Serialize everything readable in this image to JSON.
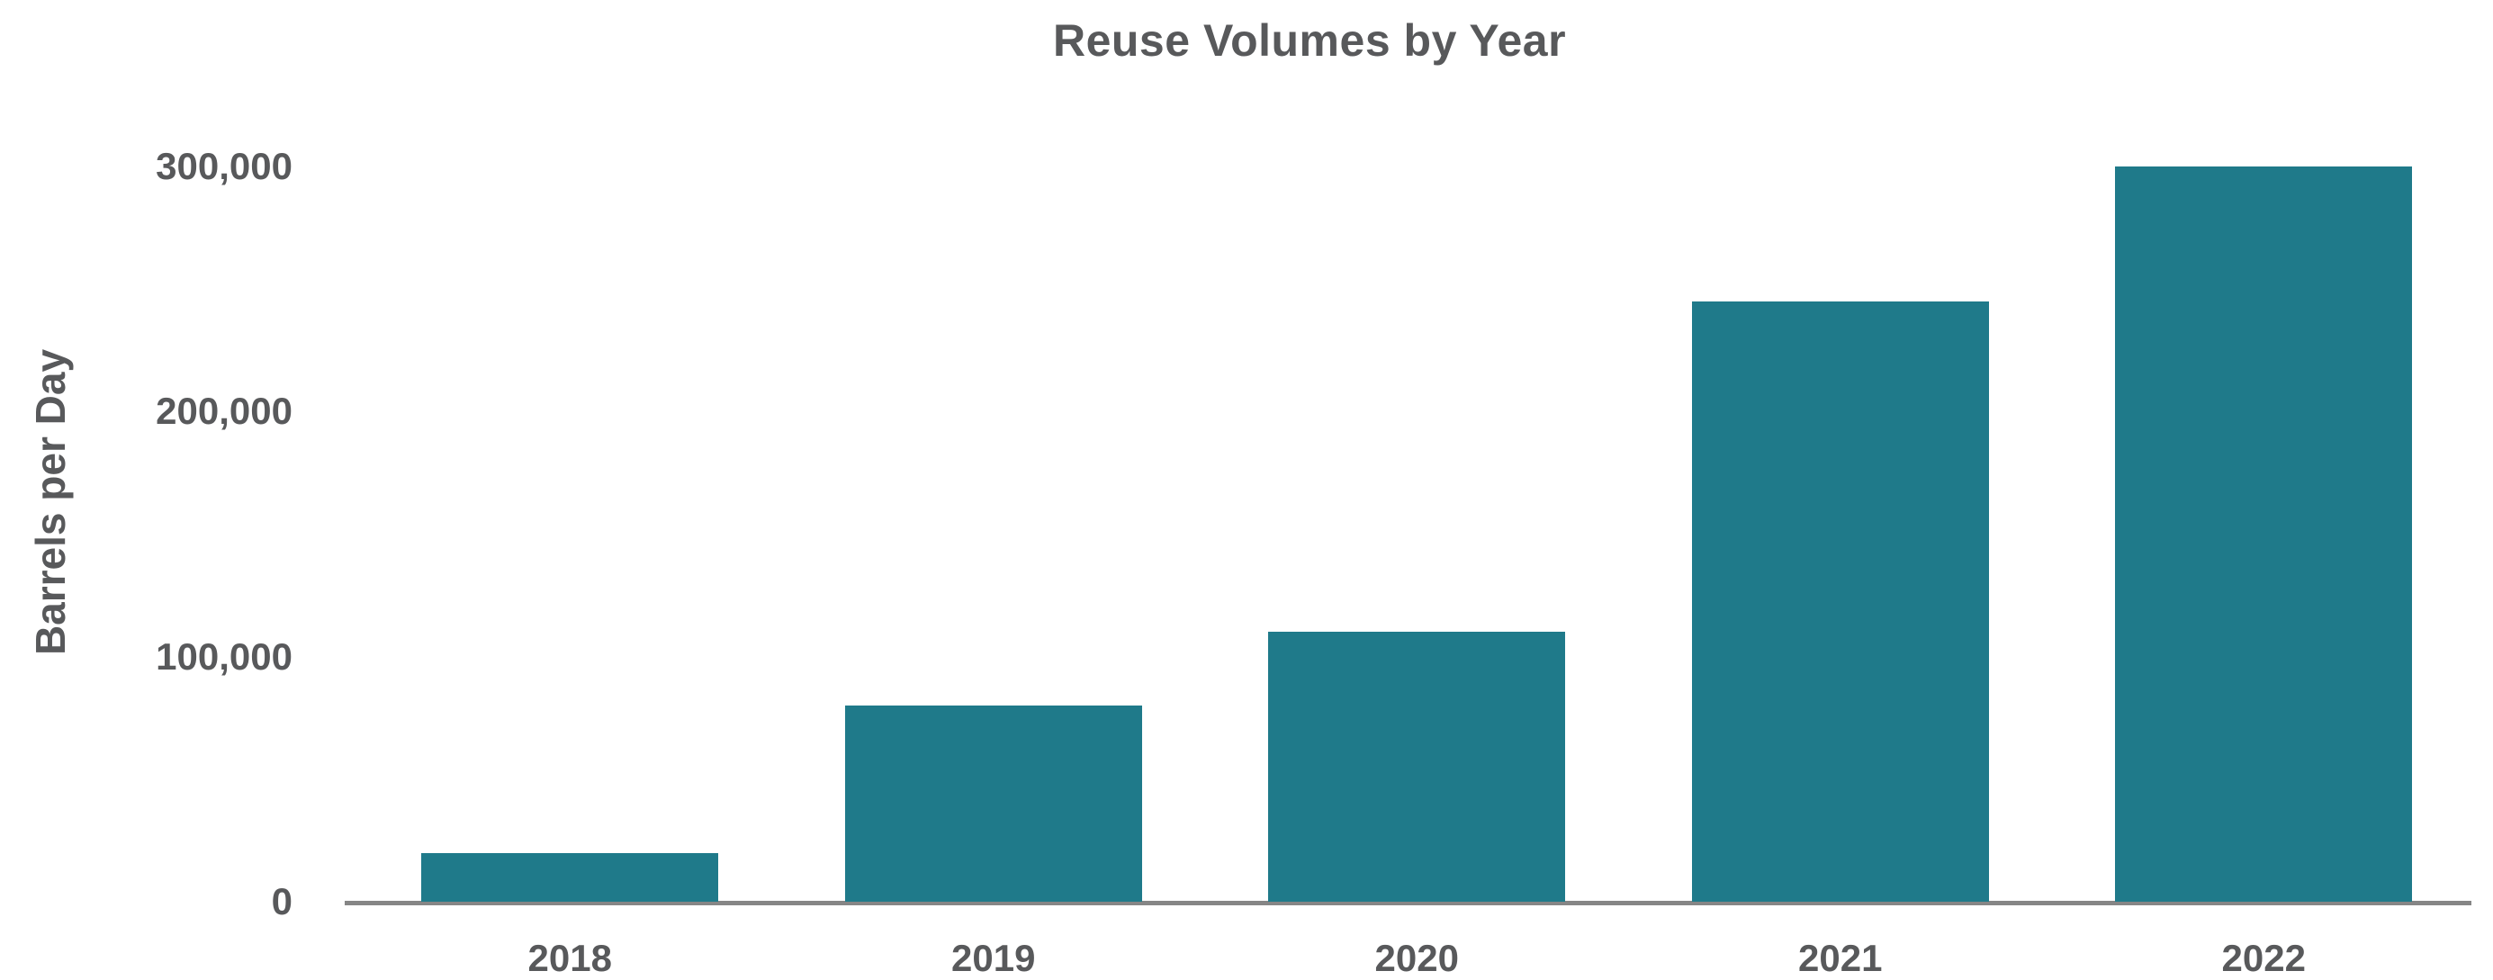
{
  "title": "Reuse Volumes by Year",
  "y_axis_title": "Barrels per Day",
  "colors": {
    "bar": "#1F7A8A",
    "text": "#58595B",
    "axis": "#868686",
    "background": "#FFFFFF"
  },
  "chart_data": {
    "type": "bar",
    "title": "Reuse Volumes by Year",
    "xlabel": "",
    "ylabel": "Barrels per Day",
    "categories": [
      "2018",
      "2019",
      "2020",
      "2021",
      "2022"
    ],
    "values": [
      20000,
      80000,
      110000,
      245000,
      300000
    ],
    "ylim": [
      0,
      300000
    ],
    "yticks": [
      0,
      100000,
      200000,
      300000
    ],
    "ytick_labels": [
      "0",
      "100,000",
      "200,000",
      "300,000"
    ],
    "grid": false,
    "legend": false,
    "bar_color": "#1F7A8A"
  }
}
